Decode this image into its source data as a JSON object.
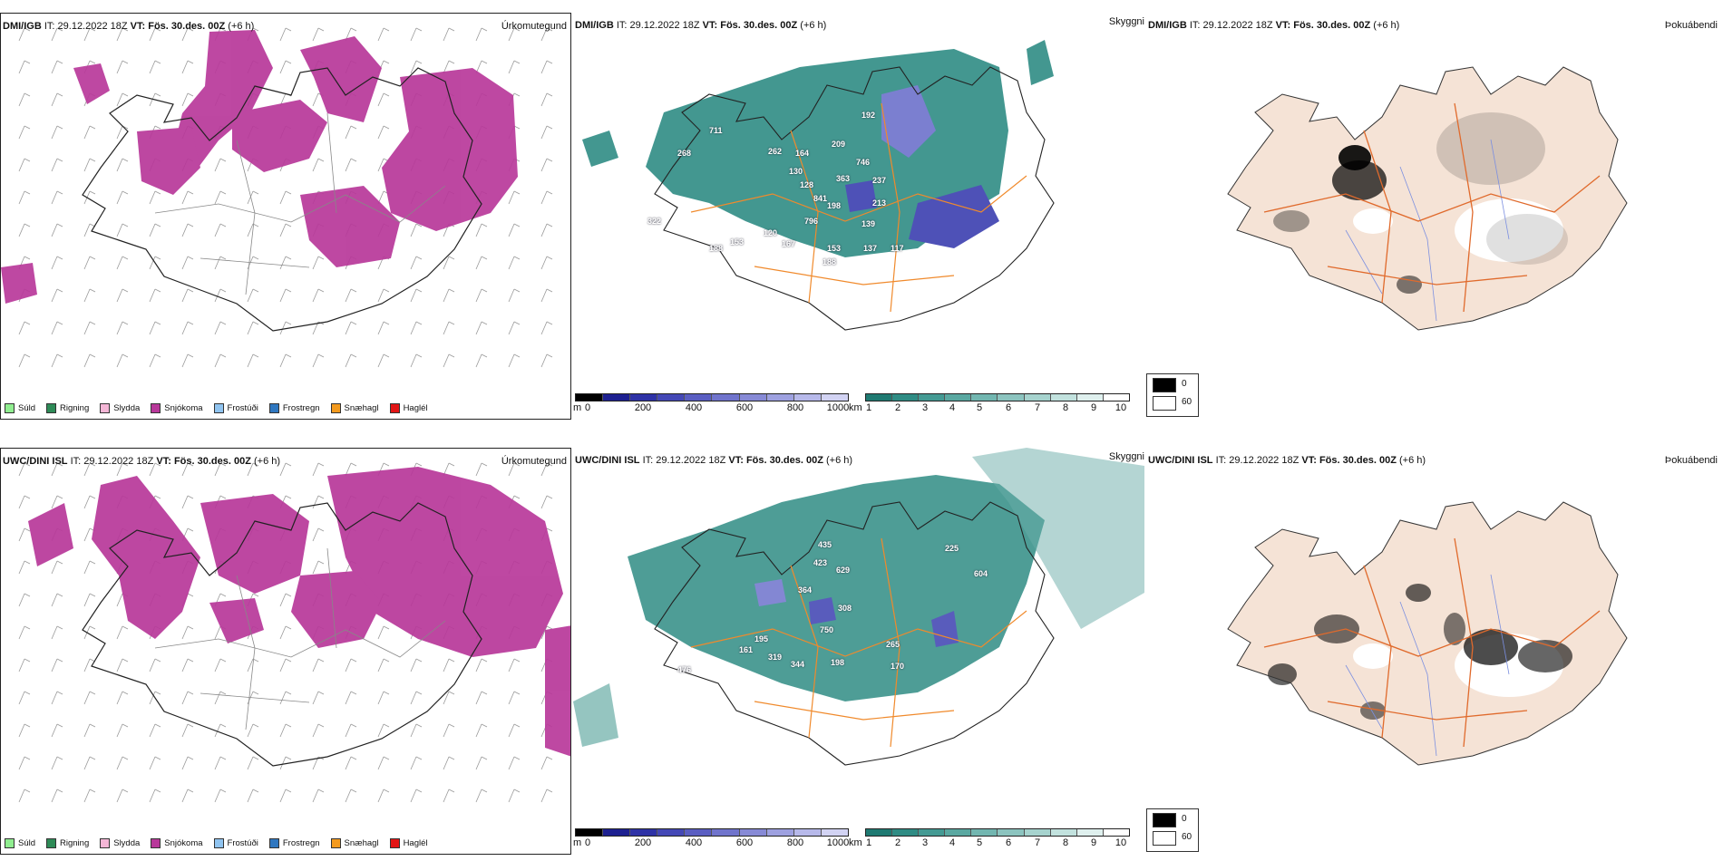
{
  "rows": [
    {
      "model": "DMI/IGB",
      "it_label": "IT:",
      "it_value": "29.12.2022 18Z",
      "vt_label": "VT:",
      "vt_value": "Fös. 30.des. 00Z",
      "lead": "(+6 h)",
      "visibility_values": [
        "711",
        "268",
        "262",
        "192",
        "209",
        "164",
        "130",
        "746",
        "128",
        "363",
        "237",
        "841",
        "198",
        "213",
        "796",
        "120",
        "322",
        "153",
        "167",
        "139",
        "117",
        "188",
        "153",
        "137",
        "188"
      ],
      "visibility_intensity": "low"
    },
    {
      "model": "UWC/DINI ISL",
      "it_label": "IT:",
      "it_value": "29.12.2022 18Z",
      "vt_label": "VT:",
      "vt_value": "Fös. 30.des. 00Z",
      "lead": "(+6 h)",
      "visibility_values": [
        "435",
        "423",
        "629",
        "225",
        "604",
        "364",
        "308",
        "750",
        "195",
        "161",
        "319",
        "344",
        "198",
        "265",
        "476",
        "170"
      ],
      "visibility_intensity": "high"
    }
  ],
  "precip_panel": {
    "title": "Úrkomutegund",
    "legend": [
      {
        "label": "Súld",
        "color": "#90ee90"
      },
      {
        "label": "Rigning",
        "color": "#2e8b57"
      },
      {
        "label": "Slydda",
        "color": "#f4b6d6"
      },
      {
        "label": "Snjókoma",
        "color": "#b8389a"
      },
      {
        "label": "Frostúði",
        "color": "#90c4f0"
      },
      {
        "label": "Frostregn",
        "color": "#2f77c0"
      },
      {
        "label": "Snæhagl",
        "color": "#f39a1e"
      },
      {
        "label": "Haglél",
        "color": "#e21515"
      }
    ]
  },
  "visibility_panel": {
    "title": "Skyggni",
    "height_scale": {
      "unit": "m",
      "ticks": [
        "0",
        "200",
        "400",
        "600",
        "800",
        "1000"
      ]
    },
    "vis_scale": {
      "unit": "km",
      "ticks": [
        "1",
        "2",
        "3",
        "4",
        "5",
        "6",
        "7",
        "8",
        "9",
        "10"
      ]
    }
  },
  "fog_panel": {
    "title": "Þokuábendi",
    "legend": [
      {
        "label": "0",
        "color": "#000000"
      },
      {
        "label": "60",
        "color": "#ffffff"
      }
    ]
  },
  "colors": {
    "snow": "#b8389a",
    "vis_teal": "#2f8c84",
    "vis_blue": "#3b3fb0",
    "land": "#f5e3d6",
    "roads": "#e06a2c",
    "orange_roads": "#f08a2c"
  }
}
